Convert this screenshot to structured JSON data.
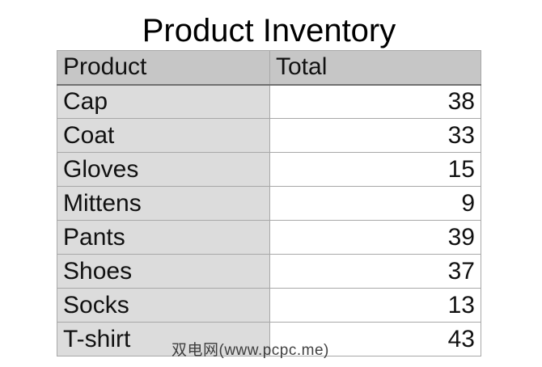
{
  "title": "Product Inventory",
  "table": {
    "headers": [
      "Product",
      "Total"
    ],
    "rows": [
      {
        "product": "Cap",
        "total": "38"
      },
      {
        "product": "Coat",
        "total": "33"
      },
      {
        "product": "Gloves",
        "total": "15"
      },
      {
        "product": "Mittens",
        "total": "9"
      },
      {
        "product": "Pants",
        "total": "39"
      },
      {
        "product": "Shoes",
        "total": "37"
      },
      {
        "product": "Socks",
        "total": "13"
      },
      {
        "product": "T-shirt",
        "total": "43"
      }
    ]
  },
  "watermark": "双电网(www.pcpc.me)",
  "colors": {
    "header_bg": "#c6c6c6",
    "product_col_bg": "#dcdcdc",
    "total_col_bg": "#ffffff"
  }
}
